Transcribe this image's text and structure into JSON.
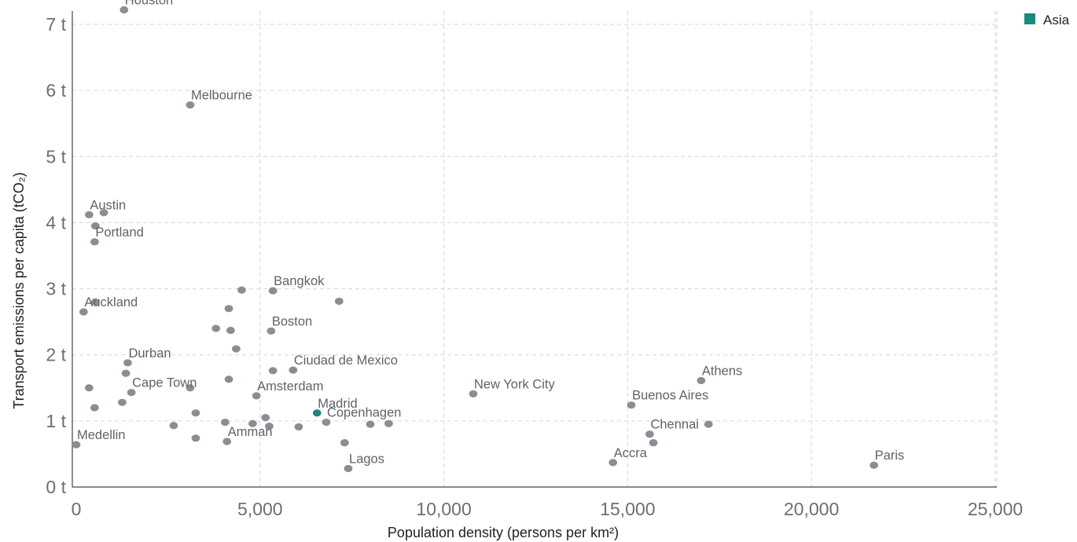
{
  "chart_data": {
    "type": "scatter",
    "xlabel": "Population density (persons per km²)",
    "ylabel": "Transport emissions per capita (tCO₂)",
    "xlim": [
      0,
      25000
    ],
    "ylim": [
      0,
      7.2
    ],
    "x_ticks": [
      0,
      5000,
      10000,
      15000,
      20000,
      25000
    ],
    "x_tick_labels": [
      "0",
      "5,000",
      "10,000",
      "15,000",
      "20,000",
      "25,000"
    ],
    "y_ticks": [
      0,
      1,
      2,
      3,
      4,
      5,
      6,
      7
    ],
    "y_tick_labels": [
      "0 t",
      "1 t",
      "2 t",
      "3 t",
      "4 t",
      "5 t",
      "6 t",
      "7 t"
    ],
    "grid": true,
    "legend": {
      "position": "top-right",
      "entries": [
        {
          "name": "Asia",
          "color": "#1a8a7e"
        }
      ]
    },
    "colors": {
      "default": "#8a8d94",
      "asia": "#1a8a7e"
    },
    "points": [
      {
        "x": 1300,
        "y": 7.22,
        "label": "Houston"
      },
      {
        "x": 3100,
        "y": 5.78,
        "label": "Melbourne"
      },
      {
        "x": 350,
        "y": 4.12,
        "label": "Austin"
      },
      {
        "x": 750,
        "y": 4.15
      },
      {
        "x": 520,
        "y": 3.95
      },
      {
        "x": 500,
        "y": 3.71,
        "label": "Portland"
      },
      {
        "x": 520,
        "y": 2.8
      },
      {
        "x": 200,
        "y": 2.65,
        "label": "Auckland"
      },
      {
        "x": 4500,
        "y": 2.98
      },
      {
        "x": 5350,
        "y": 2.97,
        "label": "Bangkok"
      },
      {
        "x": 7150,
        "y": 2.81
      },
      {
        "x": 4150,
        "y": 2.7
      },
      {
        "x": 3800,
        "y": 2.4
      },
      {
        "x": 4200,
        "y": 2.37
      },
      {
        "x": 5300,
        "y": 2.36,
        "label": "Boston"
      },
      {
        "x": 4350,
        "y": 2.09
      },
      {
        "x": 1400,
        "y": 1.88,
        "label": "Durban"
      },
      {
        "x": 1350,
        "y": 1.72
      },
      {
        "x": 5350,
        "y": 1.76
      },
      {
        "x": 5900,
        "y": 1.77,
        "label": "Ciudad de Mexico"
      },
      {
        "x": 4150,
        "y": 1.63
      },
      {
        "x": 350,
        "y": 1.5
      },
      {
        "x": 1500,
        "y": 1.43,
        "label": "Cape Town"
      },
      {
        "x": 3100,
        "y": 1.5
      },
      {
        "x": 4900,
        "y": 1.38,
        "label": "Amsterdam"
      },
      {
        "x": 1250,
        "y": 1.28
      },
      {
        "x": 500,
        "y": 1.2
      },
      {
        "x": 3250,
        "y": 1.12
      },
      {
        "x": 5150,
        "y": 1.05
      },
      {
        "x": 6550,
        "y": 1.12,
        "label": "Madrid",
        "asia": true
      },
      {
        "x": 6800,
        "y": 0.98,
        "label": "Copenhagen"
      },
      {
        "x": 8000,
        "y": 0.95
      },
      {
        "x": 8500,
        "y": 0.96
      },
      {
        "x": 4050,
        "y": 0.98
      },
      {
        "x": 4800,
        "y": 0.96
      },
      {
        "x": 5250,
        "y": 0.92
      },
      {
        "x": 6050,
        "y": 0.91
      },
      {
        "x": 2650,
        "y": 0.93
      },
      {
        "x": 3250,
        "y": 0.74
      },
      {
        "x": 4100,
        "y": 0.69,
        "label": "Amman"
      },
      {
        "x": 7300,
        "y": 0.67
      },
      {
        "x": 7400,
        "y": 0.28,
        "label": "Lagos"
      },
      {
        "x": 0,
        "y": 0.64,
        "label": "Medellin"
      },
      {
        "x": 10800,
        "y": 1.41,
        "label": "New York City"
      },
      {
        "x": 15100,
        "y": 1.24,
        "label": "Buenos Aires"
      },
      {
        "x": 17000,
        "y": 1.61,
        "label": "Athens"
      },
      {
        "x": 17200,
        "y": 0.95
      },
      {
        "x": 15600,
        "y": 0.8,
        "label": "Chennai"
      },
      {
        "x": 15700,
        "y": 0.67
      },
      {
        "x": 14600,
        "y": 0.37,
        "label": "Accra"
      },
      {
        "x": 21700,
        "y": 0.33,
        "label": "Paris"
      }
    ]
  }
}
